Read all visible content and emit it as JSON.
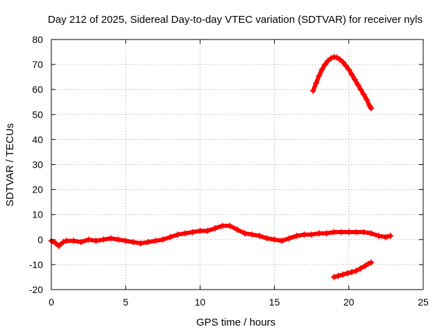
{
  "chart_data": {
    "type": "scatter",
    "title": "Day 212 of 2025, Sidereal Day-to-day VTEC variation (SDTVAR) for receiver nyls",
    "xlabel": "GPS time / hours",
    "ylabel": "SDTVAR / TECUs",
    "xlim": [
      0,
      25
    ],
    "ylim": [
      -20,
      80
    ],
    "xticks": [
      0,
      5,
      10,
      15,
      20,
      25
    ],
    "yticks": [
      -20,
      -10,
      0,
      10,
      20,
      30,
      40,
      50,
      60,
      70,
      80
    ],
    "grid": true,
    "legend": "none",
    "marker": "+",
    "series": [
      {
        "name": "main trace",
        "color": "#ff0000",
        "points": [
          [
            0.0,
            -0.5
          ],
          [
            0.3,
            -1.5
          ],
          [
            0.5,
            -2.5
          ],
          [
            0.8,
            -1.0
          ],
          [
            1.0,
            -0.5
          ],
          [
            1.5,
            -0.5
          ],
          [
            2.0,
            -1.0
          ],
          [
            2.5,
            0.0
          ],
          [
            3.0,
            -0.5
          ],
          [
            3.5,
            0.0
          ],
          [
            4.0,
            0.5
          ],
          [
            4.5,
            0.0
          ],
          [
            5.0,
            -0.5
          ],
          [
            5.5,
            -1.0
          ],
          [
            6.0,
            -1.5
          ],
          [
            6.5,
            -1.0
          ],
          [
            7.0,
            -0.5
          ],
          [
            7.5,
            0.0
          ],
          [
            8.0,
            1.0
          ],
          [
            8.5,
            2.0
          ],
          [
            9.0,
            2.5
          ],
          [
            9.5,
            3.0
          ],
          [
            10.0,
            3.5
          ],
          [
            10.5,
            3.5
          ],
          [
            11.0,
            4.5
          ],
          [
            11.5,
            5.5
          ],
          [
            12.0,
            5.5
          ],
          [
            12.5,
            4.0
          ],
          [
            13.0,
            2.5
          ],
          [
            13.5,
            2.0
          ],
          [
            14.0,
            1.5
          ],
          [
            14.5,
            0.5
          ],
          [
            15.0,
            0.0
          ],
          [
            15.5,
            -0.5
          ],
          [
            16.0,
            0.5
          ],
          [
            16.5,
            1.5
          ],
          [
            17.0,
            2.0
          ],
          [
            17.5,
            2.0
          ],
          [
            18.0,
            2.5
          ],
          [
            18.5,
            2.5
          ],
          [
            19.0,
            3.0
          ],
          [
            19.5,
            3.0
          ],
          [
            20.0,
            3.0
          ],
          [
            20.5,
            3.0
          ],
          [
            21.0,
            3.0
          ],
          [
            21.5,
            2.5
          ],
          [
            22.0,
            1.5
          ],
          [
            22.5,
            1.0
          ],
          [
            22.8,
            1.5
          ]
        ]
      },
      {
        "name": "upper arc",
        "color": "#ff0000",
        "points": [
          [
            17.6,
            59.5
          ],
          [
            17.8,
            62.5
          ],
          [
            18.0,
            65.5
          ],
          [
            18.2,
            68.0
          ],
          [
            18.4,
            70.0
          ],
          [
            18.6,
            71.5
          ],
          [
            18.8,
            72.5
          ],
          [
            19.0,
            73.0
          ],
          [
            19.2,
            72.8
          ],
          [
            19.4,
            72.0
          ],
          [
            19.6,
            71.0
          ],
          [
            19.8,
            69.5
          ],
          [
            20.0,
            68.0
          ],
          [
            20.2,
            66.0
          ],
          [
            20.4,
            64.0
          ],
          [
            20.6,
            62.0
          ],
          [
            20.8,
            60.0
          ],
          [
            21.0,
            58.0
          ],
          [
            21.2,
            56.0
          ],
          [
            21.4,
            53.5
          ],
          [
            21.5,
            52.5
          ]
        ]
      },
      {
        "name": "lower segment",
        "color": "#ff0000",
        "points": [
          [
            19.0,
            -15.0
          ],
          [
            19.3,
            -14.5
          ],
          [
            19.6,
            -14.0
          ],
          [
            19.9,
            -13.5
          ],
          [
            20.2,
            -13.0
          ],
          [
            20.5,
            -12.5
          ],
          [
            20.8,
            -11.5
          ],
          [
            21.1,
            -10.5
          ],
          [
            21.3,
            -9.7
          ],
          [
            21.5,
            -9.2
          ]
        ]
      }
    ]
  }
}
